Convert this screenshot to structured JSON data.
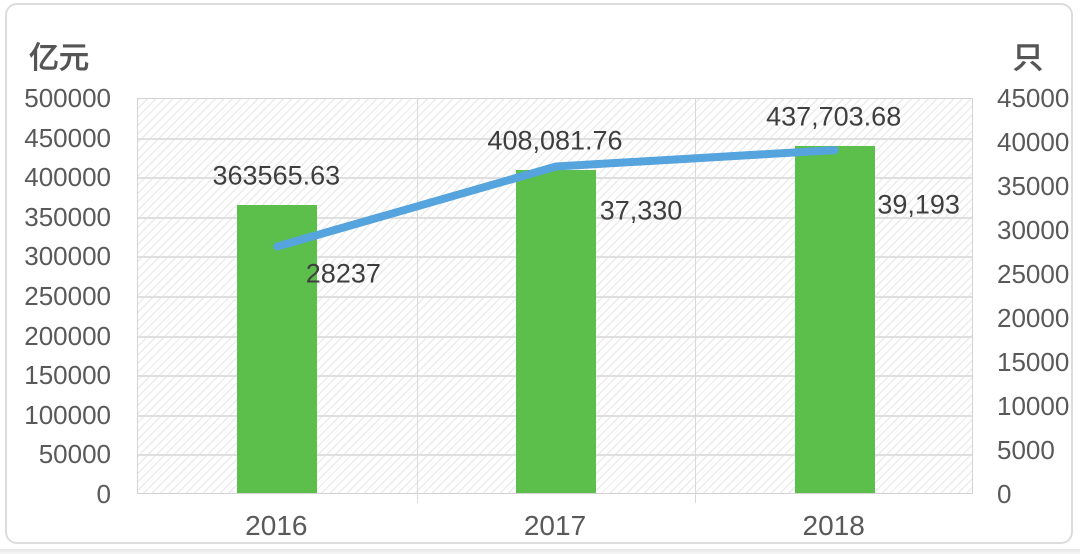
{
  "chart_data": {
    "type": "combo-bar-line",
    "categories": [
      "2016",
      "2017",
      "2018"
    ],
    "series": [
      {
        "type": "bar",
        "axis": "left",
        "values": [
          363565.63,
          408081.76,
          437703.68
        ],
        "labels": [
          "363565.63",
          "408,081.76",
          "437,703.68"
        ],
        "color": "#5cbf4c"
      },
      {
        "type": "line",
        "axis": "right",
        "values": [
          28237,
          37330,
          39193
        ],
        "labels": [
          "28237",
          "37,330",
          "39,193"
        ],
        "color": "#55a4dd"
      }
    ],
    "left_axis": {
      "title": "亿元",
      "min": 0,
      "max": 500000,
      "step": 50000,
      "tick_labels": [
        "0",
        "50000",
        "100000",
        "150000",
        "200000",
        "250000",
        "300000",
        "350000",
        "400000",
        "450000",
        "500000"
      ]
    },
    "right_axis": {
      "title": "只",
      "min": 0,
      "max": 45000,
      "step": 5000,
      "tick_labels": [
        "0",
        "5000",
        "10000",
        "15000",
        "20000",
        "25000",
        "30000",
        "35000",
        "40000",
        "45000"
      ]
    },
    "x_axis": {
      "tick_labels": [
        "2016",
        "2017",
        "2018"
      ]
    },
    "grid": true,
    "legend": "none",
    "plot_background": "diagonal-hatch",
    "colors": {
      "grid": "#dfdfdf",
      "tick_text": "#595959",
      "data_label_text": "#3e3e3e",
      "plot_border": "#d3d3d3",
      "card_border": "#dcdcdc"
    }
  }
}
